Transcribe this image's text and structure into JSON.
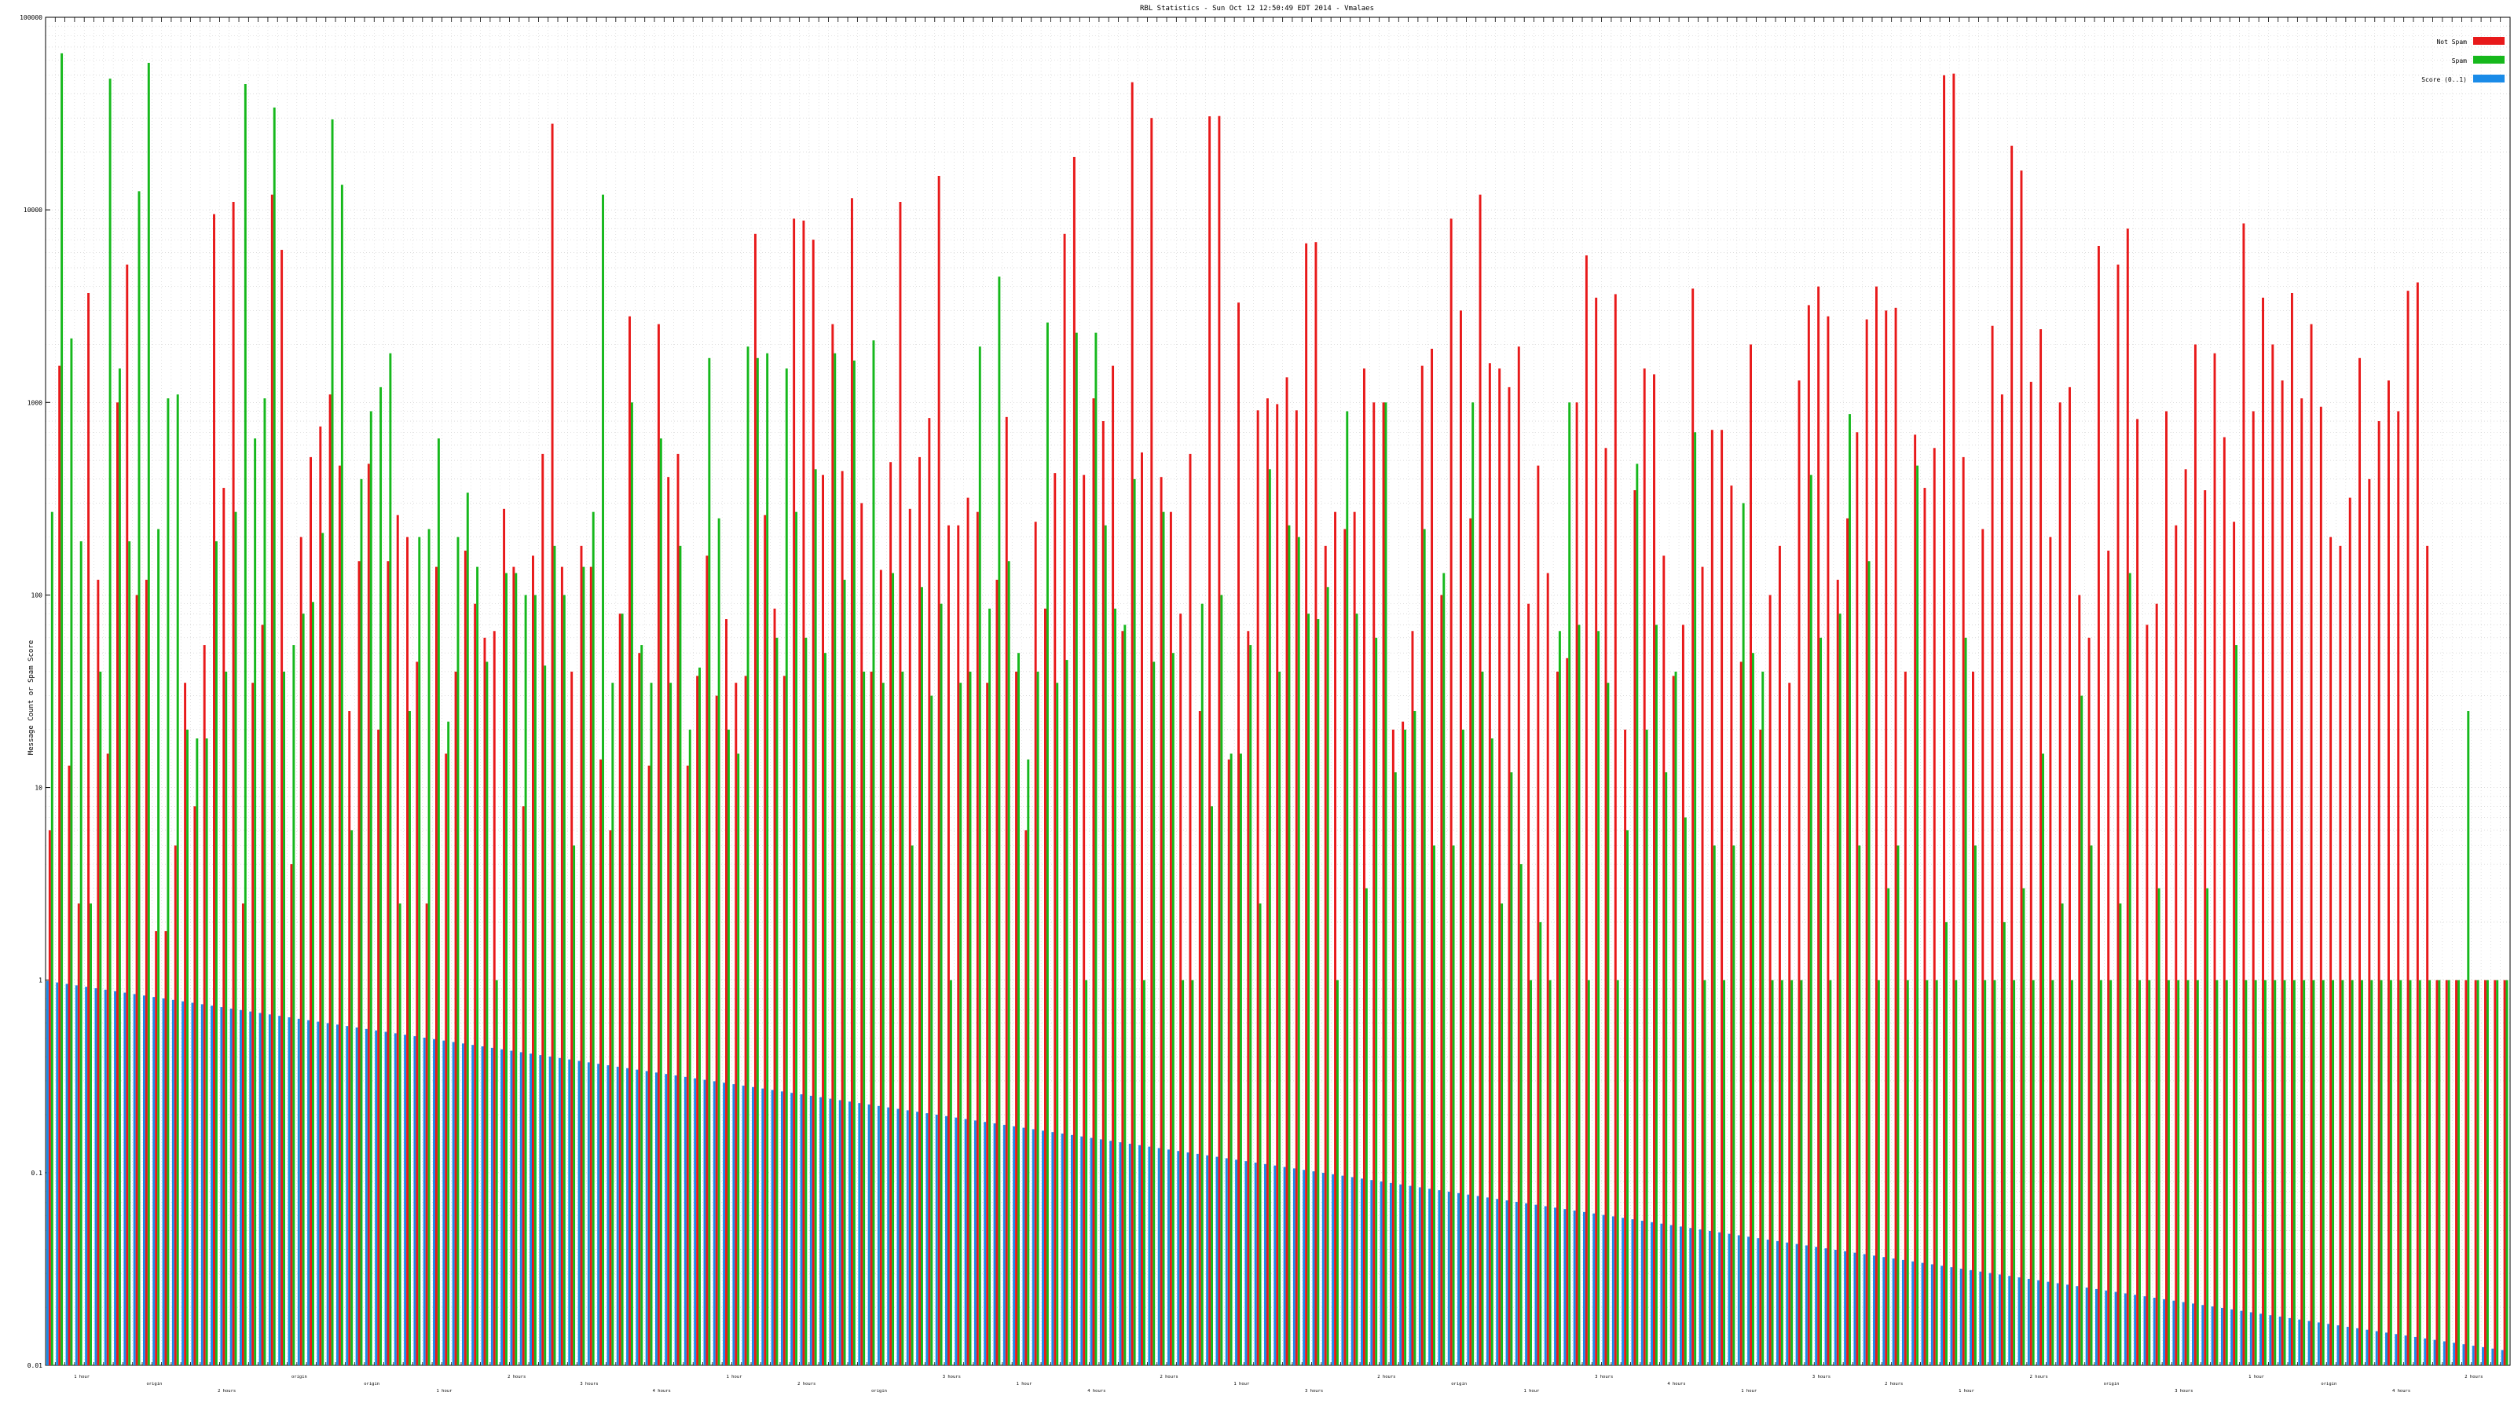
{
  "chart_data": {
    "type": "bar",
    "title": "RBL Statistics - Sun Oct 12 12:50:49 EDT 2014 - Vmalaes",
    "xlabel": "",
    "ylabel": "Message Count or Spam Score",
    "yscale": "log",
    "ylim": [
      0.01,
      100000
    ],
    "ytick_labels": [
      "0.01",
      "0.1",
      "1",
      "10",
      "100",
      "1000",
      "10000",
      "100000"
    ],
    "grid": true,
    "legend_position": "top-right",
    "colors": {
      "Not Spam": "#e8191a",
      "Spam": "#16b81c",
      "Score": "#1a8be8"
    },
    "category_count": 255,
    "x_tick_labels": [
      "1 hour",
      "origin",
      "2 hours",
      "origin",
      "origin",
      "1 hour",
      "2 hours",
      "3 hours",
      "4 hours",
      "1 hour",
      "2 hours",
      "origin",
      "3 hours",
      "1 hour",
      "4 hours",
      "2 hours",
      "1 hour",
      "3 hours",
      "2 hours",
      "origin",
      "1 hour",
      "3 hours",
      "4 hours",
      "1 hour",
      "3 hours",
      "2 hours",
      "1 hour",
      "2 hours",
      "origin",
      "3 hours",
      "1 hour",
      "origin",
      "4 hours",
      "2 hours"
    ],
    "series": [
      {
        "name": "Not Spam",
        "values": [
          6,
          1550,
          13,
          2.5,
          3700,
          120,
          15,
          1000,
          5200,
          100,
          120,
          1.8,
          1.8,
          5,
          35,
          8,
          55,
          9500,
          360,
          11000,
          2.5,
          35,
          70,
          12000,
          6200,
          4,
          200,
          520,
          750,
          1100,
          470,
          25,
          150,
          480,
          20,
          150,
          260,
          200,
          45,
          2.5,
          140,
          15,
          40,
          170,
          90,
          60,
          65,
          280,
          140,
          8,
          160,
          540,
          28000,
          140,
          40,
          180,
          140,
          14,
          6,
          80,
          2800,
          50,
          13,
          2550,
          410,
          540,
          13,
          38,
          160,
          30,
          75,
          35,
          38,
          7500,
          260,
          85,
          38,
          9000,
          8800,
          7000,
          420,
          2550,
          440,
          11500,
          300,
          40,
          135,
          490,
          11000,
          280,
          520,
          830,
          15000,
          230,
          230,
          320,
          270,
          35,
          120,
          840,
          40,
          6,
          240,
          85,
          430,
          7500,
          18800,
          420,
          1050,
          800,
          1550,
          65,
          46000,
          550,
          30000,
          410,
          270,
          80,
          540,
          25,
          30600,
          30700,
          14,
          3300,
          65,
          910,
          1050,
          980,
          1350,
          910,
          6700,
          6800,
          180,
          270,
          220,
          270,
          1500,
          1000,
          1000,
          20,
          22,
          65,
          1550,
          1900,
          100,
          9000,
          3000,
          250,
          12000,
          1600,
          1500,
          1200,
          1950,
          90,
          470,
          130,
          40,
          47,
          1000,
          5800,
          3500,
          580,
          3650,
          20,
          350,
          1500,
          1400,
          160,
          38,
          70,
          3900,
          140,
          720,
          720,
          370,
          45,
          2000,
          20,
          100,
          180,
          35,
          1300,
          3200,
          4000,
          2800,
          120,
          250,
          700,
          2700,
          4000,
          3000,
          3100,
          40,
          680,
          360,
          580,
          50000,
          51000,
          520,
          40,
          220,
          2500,
          1100,
          21500,
          16000,
          1280,
          2400,
          200,
          1000,
          1200,
          100,
          60,
          6500,
          170,
          5200,
          8000,
          820,
          70,
          90,
          900,
          230,
          450,
          2000,
          350,
          1800,
          660,
          240,
          8500,
          900,
          3500,
          2000,
          1300,
          3700,
          1050,
          2550,
          950,
          200,
          180,
          320,
          1700,
          400,
          800,
          1300,
          900,
          3800,
          4200,
          180
        ],
        "values_note": ""
      },
      {
        "name": "Spam",
        "values": [
          270,
          65000,
          2150,
          190,
          2.5,
          40,
          48000,
          1500,
          190,
          12500,
          58000,
          220,
          1050,
          1100,
          20,
          18,
          18,
          190,
          40,
          270,
          45000,
          650,
          1050,
          34000,
          40,
          55,
          80,
          92,
          210,
          29500,
          13500,
          6,
          400,
          900,
          1200,
          1800,
          2.5,
          25,
          200,
          220,
          650,
          22,
          200,
          340,
          140,
          45,
          1,
          130,
          130,
          100,
          100,
          43,
          180,
          100,
          5,
          140,
          270,
          12000,
          35,
          80,
          1000,
          55,
          35,
          650,
          35,
          180,
          20,
          42,
          1700,
          250,
          20,
          15,
          1950,
          1700,
          1800,
          60,
          1500,
          270,
          60,
          450,
          50,
          1800,
          120,
          1650,
          40,
          2100,
          35,
          130,
          40,
          5,
          110,
          30,
          90,
          1,
          35,
          40,
          1950,
          85,
          4500,
          150,
          50,
          14,
          40,
          2600,
          35,
          46,
          2300,
          1,
          2300,
          230,
          85,
          70,
          400,
          1,
          45,
          270,
          50,
          1,
          1,
          90,
          8,
          100,
          15,
          15,
          55,
          2.5,
          450,
          40,
          230,
          200,
          80,
          75,
          110,
          1,
          900,
          80,
          3,
          60,
          1000,
          12,
          20,
          25,
          220,
          5,
          130,
          5,
          20,
          1000,
          40,
          18,
          2.5,
          12,
          4,
          1,
          2,
          1,
          65,
          1000,
          70,
          1,
          65,
          35,
          1,
          6,
          480,
          20,
          70,
          12,
          40,
          7,
          700,
          1,
          5,
          1,
          5,
          300,
          50,
          40,
          1,
          1,
          1,
          1,
          420,
          60,
          1,
          80,
          870,
          5,
          150,
          1,
          3,
          5,
          1,
          470,
          1,
          1,
          2,
          1,
          60,
          5,
          1,
          1,
          2,
          1,
          3,
          1,
          15,
          1,
          2.5,
          1,
          30,
          5,
          1,
          1,
          2.5,
          130,
          1,
          1,
          3,
          1,
          1,
          1,
          1,
          3,
          1,
          1,
          55,
          1,
          1,
          1,
          1,
          1,
          1,
          1,
          1,
          1,
          1,
          1,
          1,
          1,
          1,
          1,
          1,
          1,
          1,
          1,
          1,
          1,
          1,
          1,
          25
        ]
      },
      {
        "name": "Score (0..1)",
        "score_start": 0.99,
        "score_end": 0.012
      }
    ]
  }
}
